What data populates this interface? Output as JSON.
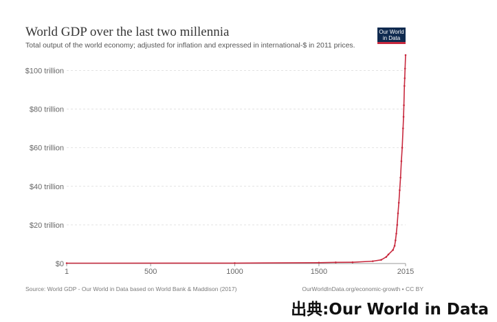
{
  "header": {
    "title": "World GDP over the last two millennia",
    "subtitle": "Total output of the world economy; adjusted for inflation and expressed in international-$ in 2011 prices.",
    "logo_line1": "Our World",
    "logo_line2": "in Data"
  },
  "footer": {
    "source": "Source: World GDP - Our World in Data based on World Bank & Maddison (2017)",
    "link": "OurWorldInData.org/economic-growth • CC BY",
    "credit": "出典:Our World in Data"
  },
  "colors": {
    "line": "#c8283d",
    "logo_bg": "#0f2a4f",
    "grid": "#e2e2e2"
  },
  "chart_data": {
    "type": "line",
    "title": "World GDP over the last two millennia",
    "xlabel": "",
    "ylabel": "",
    "xlim": [
      1,
      2015
    ],
    "ylim": [
      0,
      108
    ],
    "x_ticks": [
      1,
      500,
      1000,
      1500,
      2015
    ],
    "x_tick_labels": [
      "1",
      "500",
      "1000",
      "1500",
      "2015"
    ],
    "y_ticks": [
      0,
      20,
      40,
      60,
      80,
      100
    ],
    "y_tick_labels": [
      "$0",
      "$20 trillion",
      "$40 trillion",
      "$60 trillion",
      "$80 trillion",
      "$100 trillion"
    ],
    "grid": true,
    "legend": "none",
    "series": [
      {
        "unit": "trillion international-$ (2011 prices)",
        "x": [
          1,
          1000,
          1500,
          1600,
          1700,
          1820,
          1870,
          1900,
          1913,
          1940,
          1950,
          1955,
          1960,
          1965,
          1970,
          1975,
          1980,
          1985,
          1990,
          1995,
          2000,
          2003,
          2005,
          2008,
          2010,
          2012,
          2015
        ],
        "y": [
          0.18,
          0.21,
          0.43,
          0.59,
          0.64,
          1.2,
          1.9,
          3.4,
          4.7,
          7.0,
          9.2,
          12.0,
          15.5,
          20.0,
          26.0,
          31.5,
          38.0,
          44.5,
          53.0,
          60.0,
          70.0,
          76.0,
          82.0,
          92.0,
          96.0,
          101.0,
          108.0
        ]
      }
    ]
  }
}
